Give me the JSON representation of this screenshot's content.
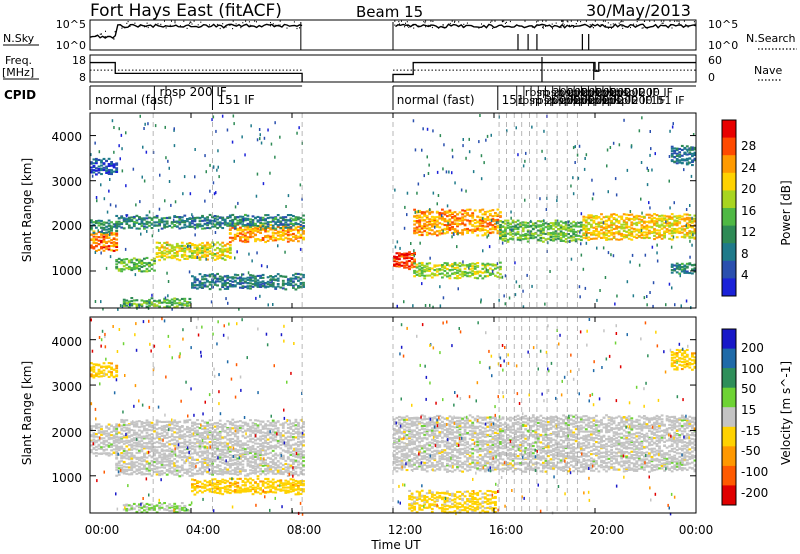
{
  "header": {
    "title": "Fort Hays East (fitACF)",
    "beam": "Beam 15",
    "date": "30/May/2013"
  },
  "nsky_panel": {
    "label": "N.Sky",
    "left_ticks": [
      "10^5",
      "10^0"
    ],
    "right_ticks": [
      "10^5",
      "10^0"
    ],
    "right_label": "N.Search"
  },
  "freq_panel": {
    "label_line1": "Freq.",
    "label_line2": "[MHz]",
    "left_ticks": [
      "18",
      "8"
    ],
    "right_ticks": [
      "60",
      "0"
    ],
    "right_label": "Nave"
  },
  "cpid": {
    "label": "CPID",
    "entries": [
      {
        "text": "normal (fast)",
        "x": 0.2
      },
      {
        "text": "rbsp 200 IF",
        "x": 2.75
      },
      {
        "text": "151 IF",
        "x": 5.05
      },
      {
        "text": "normal (fast)",
        "x": 12.15
      },
      {
        "text": "151",
        "x": 16.3
      }
    ],
    "crowd": {
      "text": "rbsp 200 IF",
      "from": 16.9,
      "to": 20.6
    },
    "crowd_tail": {
      "text": "151 IF",
      "x": 22.2
    },
    "segments": [
      {
        "start": 0.0,
        "end": 2.55
      },
      {
        "start": 2.55,
        "end": 4.85
      },
      {
        "start": 4.85,
        "end": 8.4
      },
      {
        "start": 12.0,
        "end": 16.15
      },
      {
        "start": 16.15,
        "end": 24.0
      }
    ]
  },
  "power_panel": {
    "ylabel": "Slant Range [km]",
    "yticks": [
      "1000",
      "2000",
      "3000",
      "4000"
    ],
    "cbar_label": "Power [dB]",
    "cbar_ticks": [
      "28",
      "24",
      "20",
      "16",
      "12",
      "8",
      "4"
    ],
    "cbar_colors": [
      "#e80000",
      "#ff4a00",
      "#ff9a00",
      "#ffd200",
      "#a8d520",
      "#4fb844",
      "#2e8a55",
      "#1f7a8a",
      "#2a4fae",
      "#1b22d8"
    ]
  },
  "velocity_panel": {
    "ylabel": "Slant Range [km]",
    "yticks": [
      "1000",
      "2000",
      "3000",
      "4000"
    ],
    "cbar_label": "Velocity [m s^-1]",
    "cbar_ticks": [
      "200",
      "100",
      "50",
      "15",
      "-15",
      "-50",
      "-100",
      "-200"
    ],
    "cbar_colors": [
      "#1818c8",
      "#1f6aa8",
      "#2f8f5a",
      "#6ed334",
      "#c4c4c4",
      "#ffd200",
      "#ff9800",
      "#ff5a00",
      "#e00000"
    ]
  },
  "xaxis": {
    "label": "Time UT",
    "ticks": [
      "00:00",
      "04:00",
      "08:00",
      "12:00",
      "16:00",
      "20:00",
      "00:00"
    ]
  },
  "chart_data": {
    "type": "heatmap",
    "title": "Fort Hays East (fitACF)",
    "subtitle": "Beam 15",
    "date": "30/May/2013",
    "x_range_hours": [
      0,
      24
    ],
    "y_range_km": [
      180,
      4500
    ],
    "data_gaps_hours": [
      [
        8.4,
        12.0
      ]
    ],
    "panels": [
      {
        "name": "Power",
        "units": "dB",
        "color_range": [
          0,
          30
        ],
        "bands": [
          {
            "t0": 0.0,
            "t1": 1.0,
            "r0": 1500,
            "r1": 1900,
            "value": 24
          },
          {
            "t0": 0.0,
            "t1": 1.0,
            "r0": 1900,
            "r1": 2150,
            "value": 10
          },
          {
            "t0": 0.0,
            "t1": 1.0,
            "r0": 3200,
            "r1": 3500,
            "value": 5
          },
          {
            "t0": 1.0,
            "t1": 2.6,
            "r0": 1050,
            "r1": 1300,
            "value": 14
          },
          {
            "t0": 2.6,
            "t1": 5.5,
            "r0": 1300,
            "r1": 1650,
            "value": 18
          },
          {
            "t0": 5.5,
            "t1": 8.4,
            "r0": 1700,
            "r1": 2050,
            "value": 22
          },
          {
            "t0": 1.0,
            "t1": 8.4,
            "r0": 2000,
            "r1": 2250,
            "value": 9
          },
          {
            "t0": 1.3,
            "t1": 4.0,
            "r0": 250,
            "r1": 420,
            "value": 13
          },
          {
            "t0": 4.0,
            "t1": 8.4,
            "r0": 650,
            "r1": 950,
            "value": 8
          },
          {
            "t0": 12.0,
            "t1": 12.8,
            "r0": 1100,
            "r1": 1450,
            "value": 26
          },
          {
            "t0": 12.8,
            "t1": 16.2,
            "r0": 1850,
            "r1": 2350,
            "value": 22
          },
          {
            "t0": 12.8,
            "t1": 16.2,
            "r0": 900,
            "r1": 1200,
            "value": 16
          },
          {
            "t0": 16.2,
            "t1": 19.5,
            "r0": 1700,
            "r1": 2150,
            "value": 14
          },
          {
            "t0": 19.5,
            "t1": 24.0,
            "r0": 1750,
            "r1": 2250,
            "value": 20
          },
          {
            "t0": 23.0,
            "t1": 24.0,
            "r0": 3400,
            "r1": 3800,
            "value": 7
          },
          {
            "t0": 23.0,
            "t1": 24.0,
            "r0": 1000,
            "r1": 1200,
            "value": 9
          }
        ]
      },
      {
        "name": "Velocity",
        "units": "m s^-1",
        "color_range": [
          -250,
          250
        ],
        "bands": [
          {
            "t0": 0.0,
            "t1": 1.0,
            "r0": 1500,
            "r1": 2150,
            "value": 0
          },
          {
            "t0": 0.0,
            "t1": 1.0,
            "r0": 3200,
            "r1": 3500,
            "value": -60
          },
          {
            "t0": 1.0,
            "t1": 8.4,
            "r0": 1050,
            "r1": 2250,
            "value": 0
          },
          {
            "t0": 1.3,
            "t1": 4.0,
            "r0": 250,
            "r1": 420,
            "value": 30
          },
          {
            "t0": 4.0,
            "t1": 8.4,
            "r0": 650,
            "r1": 950,
            "value": -60
          },
          {
            "t0": 12.0,
            "t1": 24.0,
            "r0": 1150,
            "r1": 2350,
            "value": 0
          },
          {
            "t0": 12.6,
            "t1": 16.0,
            "r0": 250,
            "r1": 700,
            "value": -50
          },
          {
            "t0": 23.0,
            "t1": 24.0,
            "r0": 3400,
            "r1": 3800,
            "value": -60
          }
        ]
      }
    ]
  }
}
